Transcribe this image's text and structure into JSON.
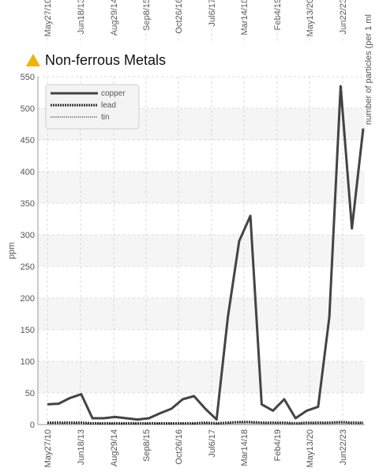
{
  "top_strip": {
    "tick_labels": [
      "May27/10",
      "Jun18/13",
      "Aug29/14",
      "Sep8/15",
      "Oct26/16",
      "Jul6/17",
      "Mar14/18",
      "Feb4/19",
      "May13/20",
      "Jun22/23"
    ],
    "side_label": "number of particles (per 1 ml"
  },
  "chart_data": {
    "type": "line",
    "title": "Non-ferrous Metals",
    "title_icon": "warning-triangle-icon",
    "title_icon_color": "#f0b400",
    "ylabel": "ppm",
    "xlabel": "",
    "ylim": [
      0,
      550
    ],
    "yticks": [
      0,
      50,
      100,
      150,
      200,
      250,
      300,
      350,
      400,
      450,
      500,
      550
    ],
    "xtick_labels": [
      "May27/10",
      "Jun18/13",
      "Aug29/14",
      "Sep8/15",
      "Oct26/16",
      "Jul6/17",
      "Mar14/18",
      "Feb4/19",
      "May13/20",
      "Jun22/23"
    ],
    "grid": true,
    "legend_position": "top-left",
    "series": [
      {
        "name": "copper",
        "color": "#444444",
        "style": "solid",
        "values": [
          32,
          33,
          42,
          48,
          10,
          10,
          12,
          10,
          8,
          10,
          18,
          25,
          40,
          45,
          25,
          8,
          170,
          290,
          330,
          32,
          22,
          40,
          10,
          22,
          28,
          170,
          535,
          310,
          468
        ]
      },
      {
        "name": "lead",
        "color": "#333333",
        "style": "dense-dotted",
        "values": [
          3,
          3,
          3,
          3,
          2,
          2,
          2,
          2,
          2,
          2,
          2,
          2,
          2,
          2,
          3,
          2,
          3,
          4,
          4,
          3,
          3,
          3,
          2,
          3,
          3,
          3,
          4,
          3,
          3
        ]
      },
      {
        "name": "tin",
        "color": "#666666",
        "style": "dotted",
        "values": [
          1,
          1,
          1,
          1,
          1,
          1,
          1,
          1,
          1,
          1,
          1,
          1,
          1,
          1,
          1,
          1,
          1,
          2,
          2,
          1,
          1,
          1,
          1,
          1,
          1,
          1,
          2,
          1,
          1
        ]
      }
    ]
  }
}
